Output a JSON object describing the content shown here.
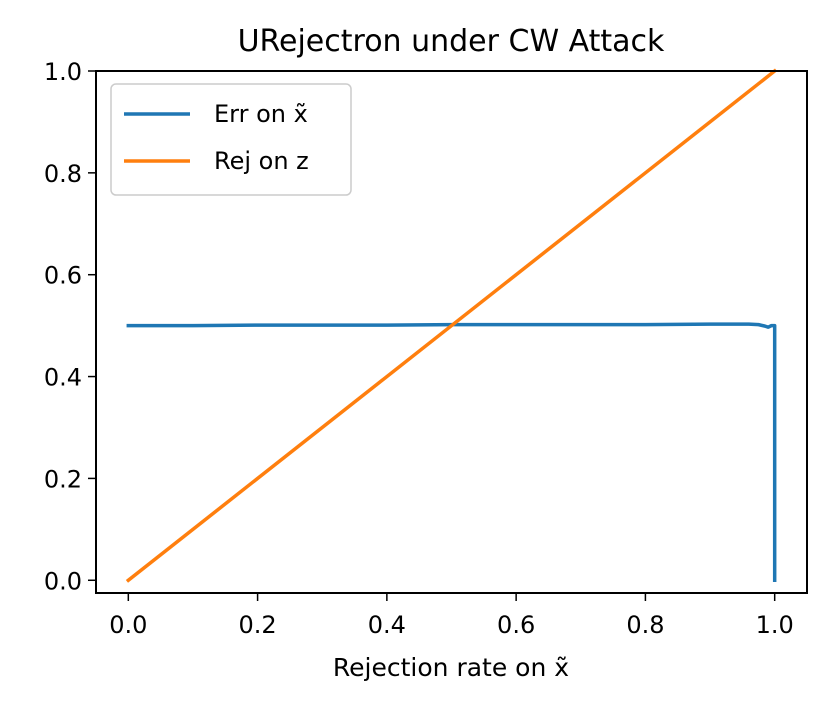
{
  "chart_data": {
    "type": "line",
    "title": "URejectron under CW Attack",
    "xlabel": "Rejection rate on x̃",
    "ylabel": "",
    "xlim": [
      -0.05,
      1.05
    ],
    "ylim": [
      -0.025,
      1.0
    ],
    "x_ticks": [
      "0.0",
      "0.2",
      "0.4",
      "0.6",
      "0.8",
      "1.0"
    ],
    "y_ticks": [
      "0.0",
      "0.2",
      "0.4",
      "0.6",
      "0.8",
      "1.0"
    ],
    "grid": false,
    "legend_position": "top-left",
    "series": [
      {
        "name": "Err on x̃",
        "color": "#1f77b4",
        "x": [
          0.0,
          0.1,
          0.2,
          0.3,
          0.4,
          0.5,
          0.6,
          0.7,
          0.8,
          0.9,
          0.96,
          0.975,
          0.985,
          0.99,
          0.995,
          1.0,
          1.0
        ],
        "y": [
          0.5,
          0.5,
          0.501,
          0.501,
          0.501,
          0.502,
          0.502,
          0.502,
          0.502,
          0.503,
          0.503,
          0.502,
          0.499,
          0.497,
          0.5,
          0.5,
          0.0
        ]
      },
      {
        "name": "Rej on z",
        "color": "#ff7f0e",
        "x": [
          0.0,
          1.0
        ],
        "y": [
          0.0,
          1.0
        ]
      }
    ]
  }
}
